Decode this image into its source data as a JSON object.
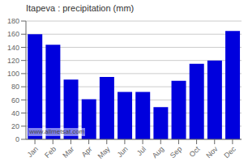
{
  "chart_data": {
    "type": "bar",
    "title": "Itapeva : precipitation (mm)",
    "categories": [
      "Jan",
      "Feb",
      "Mar",
      "Apr",
      "May",
      "Jun",
      "Jul",
      "Aug",
      "Sep",
      "Oct",
      "Nov",
      "Dec"
    ],
    "values": [
      160,
      144,
      91,
      61,
      95,
      72,
      72,
      49,
      89,
      115,
      120,
      165
    ],
    "color": "#0000dd",
    "ylim": [
      0,
      180
    ],
    "yticks": [
      0,
      20,
      40,
      60,
      80,
      100,
      120,
      140,
      160,
      180
    ],
    "grid": true,
    "annotations": [
      "www.allmetsat.com"
    ]
  }
}
